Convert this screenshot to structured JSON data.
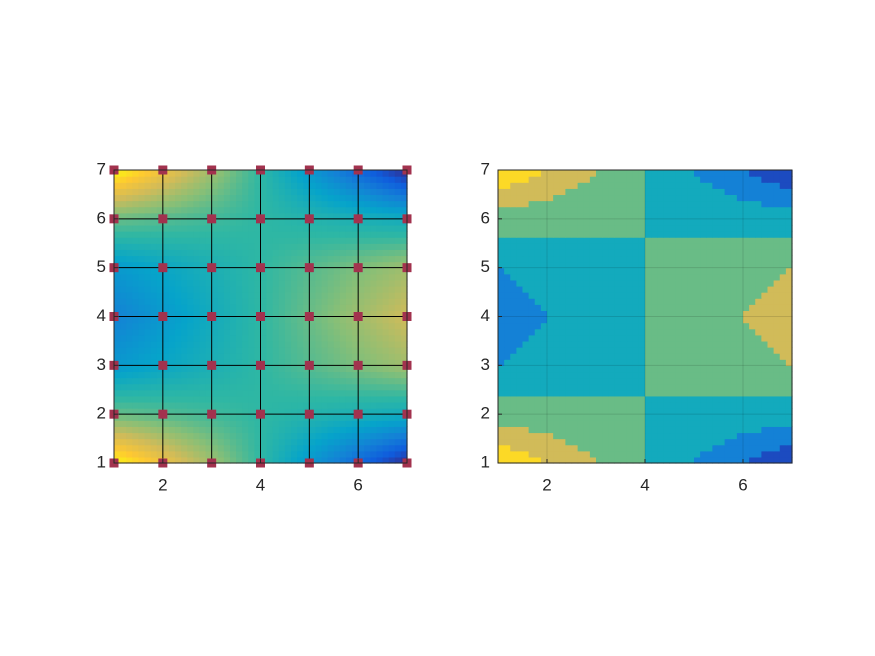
{
  "chart_data": [
    {
      "type": "surface",
      "x": [
        1,
        2,
        3,
        4,
        5,
        6,
        7
      ],
      "y": [
        1,
        2,
        3,
        4,
        5,
        6,
        7
      ],
      "z": [
        [
          6,
          4,
          2,
          0,
          -2,
          -4,
          -6
        ],
        [
          1,
          0.67,
          0.33,
          0,
          -0.33,
          -0.67,
          -1
        ],
        [
          -2,
          -1.33,
          -0.67,
          0,
          0.67,
          1.33,
          2
        ],
        [
          -3,
          -2,
          -1,
          0,
          1,
          2,
          3
        ],
        [
          -2,
          -1.33,
          -0.67,
          0,
          0.67,
          1.33,
          2
        ],
        [
          1,
          0.67,
          0.33,
          0,
          -0.33,
          -0.67,
          -1
        ],
        [
          6,
          4,
          2,
          0,
          -2,
          -4,
          -6
        ]
      ],
      "xlim": [
        1,
        7
      ],
      "ylim": [
        1,
        7
      ],
      "xticks": [
        2,
        4,
        6
      ],
      "yticks": [
        1,
        2,
        3,
        4,
        5,
        6,
        7
      ],
      "clim": [
        -6,
        6
      ],
      "marker_color": "#a2324e",
      "colormap": [
        "#352a87",
        "#0f5cdd",
        "#1481d6",
        "#06a4ca",
        "#2eb7a4",
        "#87bf77",
        "#d1bb59",
        "#fec832",
        "#f9fb0e"
      ]
    },
    {
      "type": "contour",
      "x": [
        1,
        2,
        3,
        4,
        5,
        6,
        7
      ],
      "y": [
        1,
        2,
        3,
        4,
        5,
        6,
        7
      ],
      "z": [
        [
          6,
          4,
          2,
          0,
          -2,
          -4,
          -6
        ],
        [
          1,
          0.67,
          0.33,
          0,
          -0.33,
          -0.67,
          -1
        ],
        [
          -2,
          -1.33,
          -0.67,
          0,
          0.67,
          1.33,
          2
        ],
        [
          -3,
          -2,
          -1,
          0,
          1,
          2,
          3
        ],
        [
          -2,
          -1.33,
          -0.67,
          0,
          0.67,
          1.33,
          2
        ],
        [
          1,
          0.67,
          0.33,
          0,
          -0.33,
          -0.67,
          -1
        ],
        [
          6,
          4,
          2,
          0,
          -2,
          -4,
          -6
        ]
      ],
      "xlim": [
        1,
        7
      ],
      "ylim": [
        1,
        7
      ],
      "xticks": [
        2,
        4,
        6
      ],
      "yticks": [
        1,
        2,
        3,
        4,
        5,
        6,
        7
      ],
      "clim": [
        -6,
        6
      ],
      "levels": [
        -6,
        -4,
        -2,
        0,
        2,
        4,
        6
      ],
      "grid": true,
      "colormap": [
        "#352a87",
        "#0f5cdd",
        "#1481d6",
        "#06a4ca",
        "#2eb7a4",
        "#87bf77",
        "#d1bb59",
        "#fec832",
        "#f9fb0e"
      ]
    }
  ]
}
